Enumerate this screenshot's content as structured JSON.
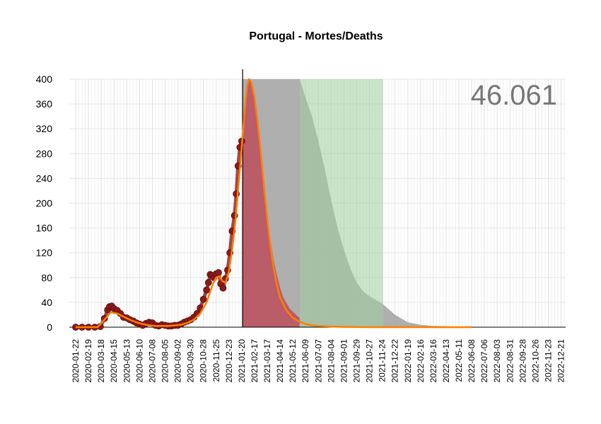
{
  "chart_data": {
    "type": "line",
    "title": "Portugal - Mortes/Deaths",
    "annotation": "46.061",
    "xlabel": "",
    "ylabel": "",
    "ylim": [
      0,
      400
    ],
    "yticks": [
      0,
      40,
      80,
      120,
      160,
      200,
      240,
      280,
      320,
      360,
      400
    ],
    "x_range": [
      "2020-01-08",
      "2022-12-31"
    ],
    "xticks": [
      "2020-01-22",
      "2020-02-19",
      "2020-03-18",
      "2020-04-15",
      "2020-05-13",
      "2020-06-10",
      "2020-07-08",
      "2020-08-05",
      "2020-09-02",
      "2020-09-30",
      "2020-10-28",
      "2020-11-25",
      "2020-12-23",
      "2021-01-20",
      "2021-02-17",
      "2021-03-17",
      "2021-04-14",
      "2021-05-12",
      "2021-06-09",
      "2021-07-07",
      "2021-08-04",
      "2021-09-01",
      "2021-09-29",
      "2021-10-27",
      "2021-11-24",
      "2021-12-22",
      "2022-01-19",
      "2022-02-16",
      "2022-03-16",
      "2022-04-13",
      "2022-05-11",
      "2022-06-08",
      "2022-07-06",
      "2022-08-03",
      "2022-08-31",
      "2022-09-28",
      "2022-10-26",
      "2022-11-23",
      "2022-12-21"
    ],
    "grid": true,
    "legend": "none",
    "vline_date": "2021-01-22",
    "colors": {
      "observed": "#8b1a1a",
      "fit": "#ff7f00",
      "band_gray": "#a6a6a6",
      "band_red": "#c0394b",
      "band_green": "#8fc98f",
      "green_rect": "#9fd09f",
      "annotation": "#777777"
    },
    "series": [
      {
        "name": "observed",
        "style": "points",
        "x": [
          "2020-01-22",
          "2020-02-05",
          "2020-02-19",
          "2020-03-04",
          "2020-03-16",
          "2020-03-25",
          "2020-04-01",
          "2020-04-05",
          "2020-04-10",
          "2020-04-15",
          "2020-04-22",
          "2020-04-29",
          "2020-05-06",
          "2020-05-13",
          "2020-05-20",
          "2020-05-27",
          "2020-06-03",
          "2020-06-10",
          "2020-06-17",
          "2020-06-24",
          "2020-07-01",
          "2020-07-08",
          "2020-07-15",
          "2020-07-22",
          "2020-07-29",
          "2020-08-05",
          "2020-08-12",
          "2020-08-19",
          "2020-08-26",
          "2020-09-02",
          "2020-09-09",
          "2020-09-16",
          "2020-09-23",
          "2020-09-30",
          "2020-10-07",
          "2020-10-14",
          "2020-10-21",
          "2020-10-28",
          "2020-11-04",
          "2020-11-08",
          "2020-11-12",
          "2020-11-16",
          "2020-11-20",
          "2020-11-25",
          "2020-11-30",
          "2020-12-05",
          "2020-12-10",
          "2020-12-15",
          "2020-12-20",
          "2020-12-25",
          "2020-12-30",
          "2021-01-04",
          "2021-01-08",
          "2021-01-12",
          "2021-01-16",
          "2021-01-20"
        ],
        "values": [
          0,
          0,
          0,
          0,
          1,
          14,
          28,
          33,
          34,
          30,
          27,
          22,
          16,
          15,
          12,
          10,
          7,
          5,
          3,
          6,
          8,
          7,
          3,
          2,
          4,
          3,
          2,
          2,
          3,
          3,
          5,
          8,
          10,
          12,
          16,
          22,
          31,
          45,
          60,
          72,
          85,
          83,
          80,
          86,
          88,
          70,
          63,
          78,
          92,
          120,
          155,
          180,
          215,
          260,
          290,
          300
        ]
      },
      {
        "name": "fit",
        "style": "line",
        "x": [
          "2020-01-22",
          "2020-03-10",
          "2020-03-25",
          "2020-04-08",
          "2020-04-22",
          "2020-05-06",
          "2020-05-20",
          "2020-06-03",
          "2020-06-17",
          "2020-07-01",
          "2020-07-15",
          "2020-07-29",
          "2020-08-12",
          "2020-08-26",
          "2020-09-09",
          "2020-09-23",
          "2020-10-07",
          "2020-10-21",
          "2020-11-04",
          "2020-11-11",
          "2020-11-18",
          "2020-11-25",
          "2020-12-02",
          "2020-12-09",
          "2020-12-16",
          "2020-12-23",
          "2020-12-30",
          "2021-01-06",
          "2021-01-13",
          "2021-01-20",
          "2021-01-27",
          "2021-02-01",
          "2021-02-05",
          "2021-02-10",
          "2021-02-17",
          "2021-02-24",
          "2021-03-03",
          "2021-03-10",
          "2021-03-17",
          "2021-03-24",
          "2021-03-31",
          "2021-04-07",
          "2021-04-14",
          "2021-04-28",
          "2021-05-12",
          "2021-05-26",
          "2021-06-09",
          "2021-06-23",
          "2021-07-07",
          "2021-08-04",
          "2021-09-01",
          "2021-10-01",
          "2021-11-01"
        ],
        "values": [
          0,
          0,
          12,
          24,
          22,
          17,
          12,
          8,
          5,
          3,
          2,
          2,
          2,
          3,
          4,
          7,
          12,
          22,
          40,
          55,
          70,
          80,
          82,
          74,
          72,
          90,
          125,
          170,
          230,
          290,
          355,
          390,
          400,
          395,
          370,
          330,
          280,
          225,
          175,
          130,
          95,
          68,
          48,
          27,
          15,
          9,
          5,
          3,
          2,
          1,
          0.5,
          0.2,
          0
        ]
      }
    ],
    "bands": [
      {
        "name": "gray-projection",
        "start": "2021-01-22",
        "end": "2021-12-31",
        "tail": [
          [
            "2021-11-24",
            38
          ],
          [
            "2021-12-22",
            20
          ],
          [
            "2022-01-19",
            8
          ],
          [
            "2022-02-16",
            4
          ],
          [
            "2022-03-16",
            2
          ],
          [
            "2022-05-11",
            1
          ],
          [
            "2022-06-08",
            0
          ]
        ]
      },
      {
        "name": "red-projection",
        "start": "2021-01-22",
        "end": "2021-05-27",
        "peak": 400
      },
      {
        "name": "green-projection",
        "start": "2021-05-27",
        "end": "2021-11-26"
      }
    ]
  }
}
